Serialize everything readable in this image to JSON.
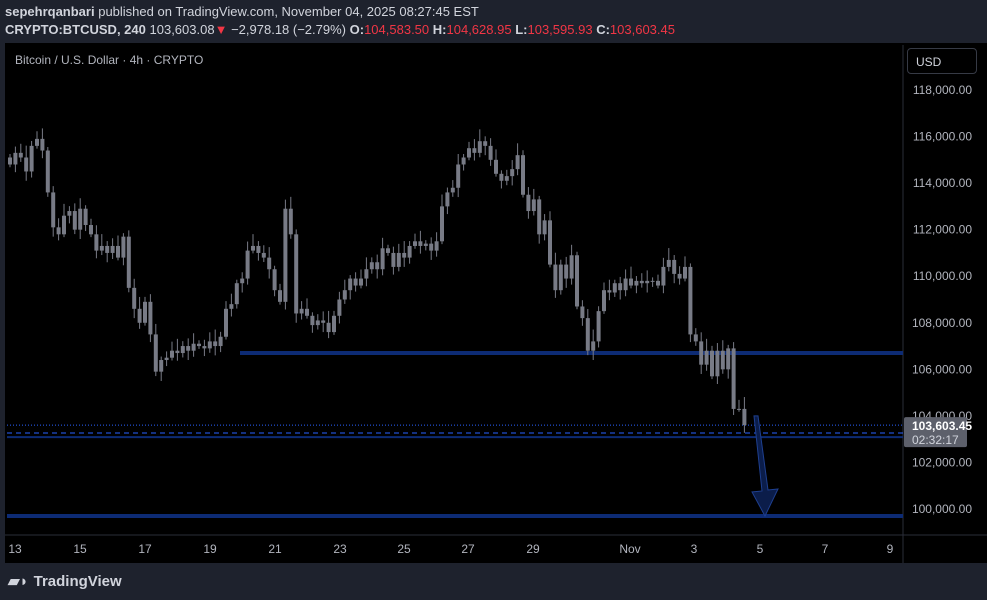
{
  "header": {
    "author": "sepehrqanbari",
    "published": "published on TradingView.com, November 04, 2025 08:27:45 EST",
    "symbol": "CRYPTO:BTCUSD, 240",
    "last": "103,603.08",
    "change": "−2,978.18 (−2.79%)",
    "o_label": "O:",
    "open": "104,583.50",
    "h_label": "H:",
    "high": "104,628.95",
    "l_label": "L:",
    "low": "103,595.93",
    "c_label": "C:",
    "close": "103,603.45"
  },
  "chart": {
    "title": "Bitcoin / U.S. Dollar · 4h · CRYPTO",
    "currency": "USD",
    "current_price": "103,603.45",
    "countdown": "02:32:17"
  },
  "colors": {
    "candle": "#787b86",
    "line": "#0d2b74",
    "background": "#000000",
    "down": "#f23645"
  },
  "footer": {
    "logo": "TradingView"
  },
  "chart_data": {
    "type": "candlestick",
    "ylim": [
      98600,
      119300
    ],
    "y_ticks": [
      100000,
      102000,
      104000,
      106000,
      108000,
      110000,
      112000,
      114000,
      116000,
      118000
    ],
    "y_tick_labels": [
      "100,000.00",
      "102,000.00",
      "104,000.00",
      "106,000.00",
      "108,000.00",
      "110,000.00",
      "112,000.00",
      "114,000.00",
      "116,000.00",
      "118,000.00"
    ],
    "x_tick_labels": [
      "13",
      "15",
      "17",
      "19",
      "21",
      "23",
      "25",
      "27",
      "29",
      "Nov",
      "3",
      "5",
      "7",
      "9"
    ],
    "closes": [
      114800,
      115300,
      115100,
      114500,
      115600,
      115900,
      115400,
      113600,
      112100,
      111800,
      112600,
      112800,
      112000,
      112900,
      112200,
      111800,
      111100,
      111300,
      111000,
      111300,
      110800,
      111700,
      109500,
      108600,
      108000,
      108900,
      107500,
      105900,
      106400,
      106500,
      106800,
      106700,
      107000,
      106800,
      107100,
      107000,
      106900,
      107200,
      107000,
      107400,
      108600,
      108800,
      109700,
      109900,
      111100,
      111300,
      111000,
      110800,
      110300,
      109400,
      108900,
      112900,
      111800,
      108400,
      108600,
      108300,
      107900,
      108100,
      108000,
      107600,
      108300,
      109000,
      109400,
      109900,
      109600,
      109900,
      110300,
      110600,
      110300,
      111200,
      111000,
      110400,
      111000,
      110800,
      111300,
      111500,
      111300,
      111400,
      111100,
      111500,
      113000,
      113600,
      113800,
      114800,
      115100,
      115500,
      115300,
      115800,
      115600,
      115000,
      114400,
      114100,
      114300,
      114600,
      115200,
      113500,
      112800,
      113300,
      111800,
      112400,
      110500,
      109400,
      110500,
      109900,
      110900,
      108700,
      108200,
      106800,
      107200,
      108500,
      109400,
      109300,
      109700,
      109400,
      109900,
      109600,
      109800,
      109700,
      109800,
      109800,
      109600,
      110400,
      110700,
      110100,
      109900,
      110400,
      107500,
      107200,
      106200,
      106800,
      105700,
      106800,
      106000,
      106900,
      104300,
      104300,
      103603
    ],
    "horizontal_levels": [
      106700,
      103603,
      103265,
      103090,
      99700
    ],
    "arrow": {
      "from": 104000,
      "to": 99700
    }
  }
}
